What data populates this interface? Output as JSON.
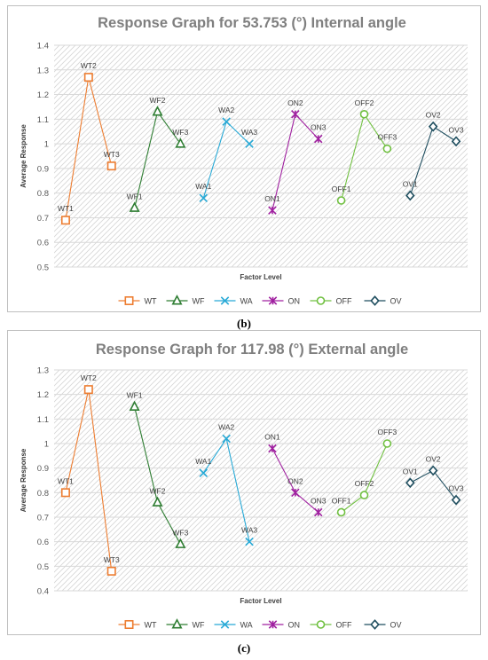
{
  "figures": [
    {
      "caption": "(b)"
    },
    {
      "caption": "(c)"
    }
  ],
  "series_colors": {
    "WT": "#ED7D31",
    "WF": "#2E7D32",
    "WA": "#27A9D6",
    "ON": "#A020A0",
    "OFF": "#70C040",
    "OV": "#1F4E5F"
  },
  "chart_data": [
    {
      "type": "line",
      "title": "Response Graph for 53.753 (°) Internal angle",
      "xlabel": "Factor Level",
      "ylabel": "Average Response",
      "ylim": [
        0.5,
        1.4
      ],
      "yticks": [
        "0.5",
        "0.6",
        "0.7",
        "0.8",
        "0.9",
        "1",
        "1.1",
        "1.2",
        "1.3",
        "1.4"
      ],
      "grid": true,
      "legend_position": "bottom",
      "series": [
        {
          "name": "WT",
          "marker": "square",
          "labels": [
            "WT1",
            "WT2",
            "WT3"
          ],
          "values": [
            0.69,
            1.27,
            0.91
          ]
        },
        {
          "name": "WF",
          "marker": "triangle",
          "labels": [
            "WF1",
            "WF2",
            "WF3"
          ],
          "values": [
            0.74,
            1.13,
            1.0
          ]
        },
        {
          "name": "WA",
          "marker": "x",
          "labels": [
            "WA1",
            "WA2",
            "WA3"
          ],
          "values": [
            0.78,
            1.09,
            1.0
          ]
        },
        {
          "name": "ON",
          "marker": "star",
          "labels": [
            "ON1",
            "ON2",
            "ON3"
          ],
          "values": [
            0.73,
            1.12,
            1.02
          ]
        },
        {
          "name": "OFF",
          "marker": "circle",
          "labels": [
            "OFF1",
            "OFF2",
            "OFF3"
          ],
          "values": [
            0.77,
            1.12,
            0.98
          ]
        },
        {
          "name": "OV",
          "marker": "diamond",
          "labels": [
            "OV1",
            "OV2",
            "OV3"
          ],
          "values": [
            0.79,
            1.07,
            1.01
          ]
        }
      ]
    },
    {
      "type": "line",
      "title": "Response Graph for 117.98 (°) External angle",
      "xlabel": "Factor Level",
      "ylabel": "Average Response",
      "ylim": [
        0.4,
        1.3
      ],
      "yticks": [
        "0.4",
        "0.5",
        "0.6",
        "0.7",
        "0.8",
        "0.9",
        "1",
        "1.1",
        "1.2",
        "1.3"
      ],
      "grid": true,
      "legend_position": "bottom",
      "series": [
        {
          "name": "WT",
          "marker": "square",
          "labels": [
            "WT1",
            "WT2",
            "WT3"
          ],
          "values": [
            0.8,
            1.22,
            0.48
          ]
        },
        {
          "name": "WF",
          "marker": "triangle",
          "labels": [
            "WF1",
            "WF2",
            "WF3"
          ],
          "values": [
            1.15,
            0.76,
            0.59
          ]
        },
        {
          "name": "WA",
          "marker": "x",
          "labels": [
            "WA1",
            "WA2",
            "WA3"
          ],
          "values": [
            0.88,
            1.02,
            0.6
          ]
        },
        {
          "name": "ON",
          "marker": "star",
          "labels": [
            "ON1",
            "ON2",
            "ON3"
          ],
          "values": [
            0.98,
            0.8,
            0.72
          ]
        },
        {
          "name": "OFF",
          "marker": "circle",
          "labels": [
            "OFF1",
            "OFF2",
            "OFF3"
          ],
          "values": [
            0.72,
            0.79,
            1.0
          ]
        },
        {
          "name": "OV",
          "marker": "diamond",
          "labels": [
            "OV1",
            "OV2",
            "OV3"
          ],
          "values": [
            0.84,
            0.89,
            0.77
          ]
        }
      ]
    }
  ]
}
